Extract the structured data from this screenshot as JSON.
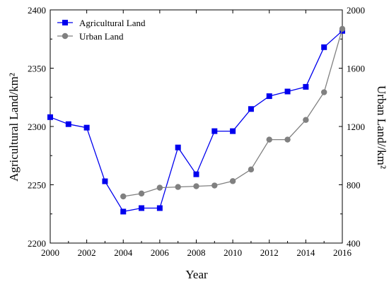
{
  "chart_data": {
    "type": "line",
    "xlabel": "Year",
    "ylabel_left": "Agricultural Land/km²",
    "ylabel_right": "Urban Land//km²",
    "xlim": [
      2000,
      2016
    ],
    "ylim_left": [
      2200,
      2400
    ],
    "ylim_right": [
      400,
      2000
    ],
    "x_ticks": [
      "2000",
      "2002",
      "2004",
      "2006",
      "2008",
      "2010",
      "2012",
      "2014",
      "2016"
    ],
    "y_ticks_left": [
      "2200",
      "2250",
      "2300",
      "2350",
      "2400"
    ],
    "y_ticks_right": [
      "400",
      "800",
      "1200",
      "1600",
      "2000"
    ],
    "legend_position": "top-left",
    "grid": false,
    "series": [
      {
        "name": "Agricultural Land",
        "axis": "left",
        "color": "#0000ee",
        "marker": "square",
        "x": [
          2000,
          2001,
          2002,
          2003,
          2004,
          2005,
          2006,
          2007,
          2008,
          2009,
          2010,
          2011,
          2012,
          2013,
          2014,
          2015,
          2016
        ],
        "values": [
          2308,
          2302,
          2299,
          2253,
          2227,
          2230,
          2230,
          2282,
          2259,
          2296,
          2296,
          2315,
          2326,
          2330,
          2334,
          2368,
          2382
        ]
      },
      {
        "name": "Urban Land",
        "axis": "right",
        "color": "#808080",
        "marker": "circle",
        "x": [
          2004,
          2005,
          2006,
          2007,
          2008,
          2009,
          2010,
          2011,
          2012,
          2013,
          2014,
          2015,
          2016
        ],
        "values": [
          720,
          740,
          780,
          785,
          790,
          795,
          825,
          905,
          1110,
          1110,
          1245,
          1435,
          1870
        ]
      }
    ]
  }
}
